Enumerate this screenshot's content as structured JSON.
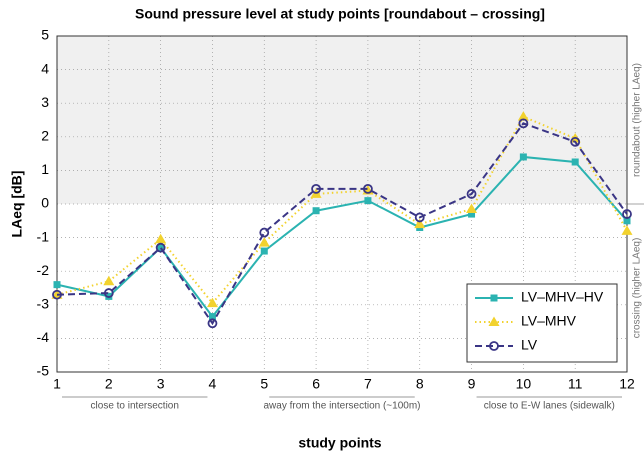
{
  "chart_data": {
    "type": "line",
    "title": "Sound pressure level at study points [roundabout – crossing]",
    "xlabel": "study points",
    "ylabel": "LAeq [dB]",
    "x": [
      1,
      2,
      3,
      4,
      5,
      6,
      7,
      8,
      9,
      10,
      11,
      12
    ],
    "xlim": [
      1,
      12
    ],
    "xticks": [
      1,
      2,
      3,
      4,
      5,
      6,
      7,
      8,
      9,
      10,
      11,
      12
    ],
    "ylim": [
      -5,
      5
    ],
    "yticks": [
      -5,
      -4,
      -3,
      -2,
      -1,
      0,
      1,
      2,
      3,
      4,
      5
    ],
    "grid": true,
    "legend": "lower right",
    "shade_above": 0,
    "series": [
      {
        "name": "LV–MHV–HV",
        "color": "#2bb3b1",
        "linestyle": "solid",
        "marker": "square",
        "values": [
          -2.4,
          -2.75,
          -1.3,
          -3.35,
          -1.4,
          -0.2,
          0.1,
          -0.7,
          -0.3,
          1.4,
          1.25,
          -0.5
        ]
      },
      {
        "name": "LV–MHV",
        "color": "#f2d22e",
        "linestyle": "dotted",
        "marker": "triangle",
        "values": [
          -2.7,
          -2.3,
          -1.05,
          -2.95,
          -1.15,
          0.3,
          0.4,
          -0.6,
          -0.15,
          2.6,
          1.95,
          -0.8
        ]
      },
      {
        "name": "LV",
        "color": "#3a3585",
        "linestyle": "dashed",
        "marker": "circle",
        "values": [
          -2.7,
          -2.65,
          -1.3,
          -3.55,
          -0.85,
          0.45,
          0.45,
          -0.4,
          0.3,
          2.4,
          1.85,
          -0.3
        ]
      }
    ],
    "groups": [
      {
        "label": "close to intersection",
        "from": 1,
        "to": 4
      },
      {
        "label": "away from the intersection (~100m)",
        "from": 5,
        "to": 8
      },
      {
        "label": "close to E-W lanes (sidewalk)",
        "from": 9,
        "to": 12
      }
    ],
    "side_labels": {
      "above": "roundabout (higher LAeq)",
      "below": "crossing (higher LAeq)"
    }
  }
}
